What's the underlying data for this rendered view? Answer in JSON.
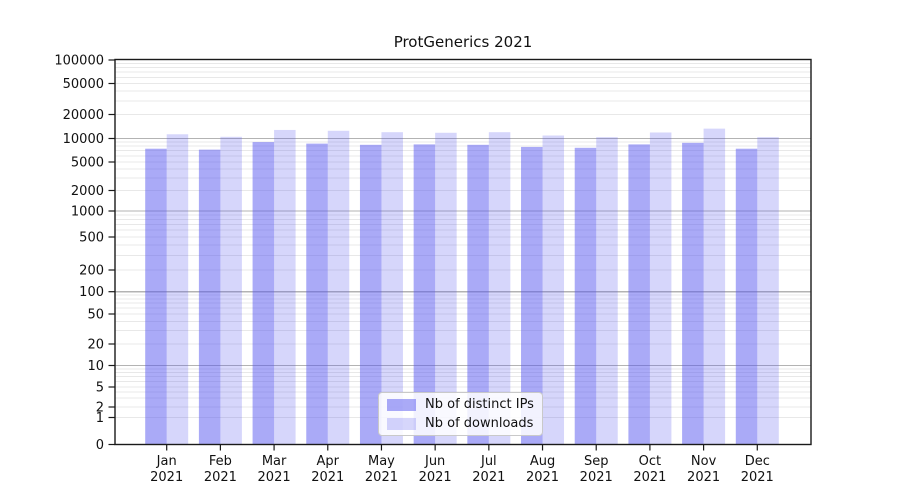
{
  "chart_data": {
    "type": "bar",
    "title": "ProtGenerics 2021",
    "year_label": "2021",
    "categories": [
      "Jan",
      "Feb",
      "Mar",
      "Apr",
      "May",
      "Jun",
      "Jul",
      "Aug",
      "Sep",
      "Oct",
      "Nov",
      "Dec"
    ],
    "series": [
      {
        "name": "Nb of distinct IPs",
        "color": "rgba(85,85,240,0.50)",
        "values": [
          7400,
          7200,
          9000,
          8600,
          8300,
          8400,
          8300,
          7800,
          7600,
          8400,
          8800,
          7400
        ]
      },
      {
        "name": "Nb of downloads",
        "color": "rgba(85,85,240,0.24)",
        "values": [
          11300,
          10500,
          12800,
          12500,
          12000,
          11800,
          12000,
          10900,
          10400,
          11900,
          13300,
          10400
        ]
      }
    ],
    "y_axis": {
      "scale": "symlog",
      "tick_labels": [
        "0",
        "1",
        "2",
        "5",
        "10",
        "20",
        "50",
        "100",
        "200",
        "500",
        "1000",
        "2000",
        "5000",
        "10000",
        "20000",
        "50000",
        "100000"
      ],
      "range": [
        0,
        100000
      ]
    },
    "x_axis": {
      "tick_line1": [
        "Jan",
        "Feb",
        "Mar",
        "Apr",
        "May",
        "Jun",
        "Jul",
        "Aug",
        "Sep",
        "Oct",
        "Nov",
        "Dec"
      ],
      "tick_line2": "2021"
    },
    "legend": {
      "position": "lower center"
    },
    "grid": "on",
    "colors": {
      "major_grid": "#b3b3b3",
      "minor_grid": "#e8e8e8",
      "spine": "#1a1a1a",
      "background": "#ffffff",
      "text": "#111111"
    }
  }
}
